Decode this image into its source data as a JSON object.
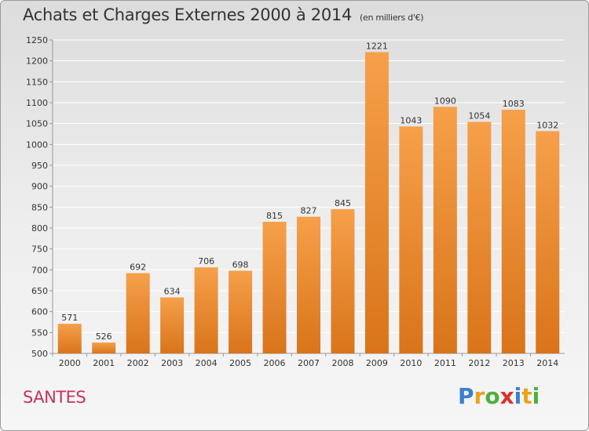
{
  "title": "Achats et Charges Externes 2000 à 2014",
  "subtitle": "(en milliers d'€)",
  "commune": "SANTES",
  "logo": {
    "text": "Proxiti",
    "letters": [
      {
        "ch": "P",
        "color": "#3a7fd0"
      },
      {
        "ch": "r",
        "color": "#e8a317"
      },
      {
        "ch": "o",
        "color": "#4caf3e"
      },
      {
        "ch": "x",
        "color": "#d8342b"
      },
      {
        "ch": "i",
        "color": "#3a7fd0"
      },
      {
        "ch": "t",
        "color": "#e8a317"
      },
      {
        "ch": "i",
        "color": "#4caf3e"
      }
    ]
  },
  "chart_data": {
    "type": "bar",
    "categories": [
      "2000",
      "2001",
      "2002",
      "2003",
      "2004",
      "2005",
      "2006",
      "2007",
      "2008",
      "2009",
      "2010",
      "2011",
      "2012",
      "2013",
      "2014"
    ],
    "values": [
      571,
      526,
      692,
      634,
      706,
      698,
      815,
      827,
      845,
      1221,
      1043,
      1090,
      1054,
      1083,
      1032
    ],
    "ylim": [
      500,
      1250
    ],
    "yticks": [
      500,
      550,
      600,
      650,
      700,
      750,
      800,
      850,
      900,
      950,
      1000,
      1050,
      1100,
      1150,
      1200,
      1250
    ],
    "grid": true,
    "bar_color": "#f0953a",
    "grid_color": "#ffffff",
    "title": "Achats et Charges Externes 2000 à 2014",
    "xlabel": "",
    "ylabel": ""
  }
}
